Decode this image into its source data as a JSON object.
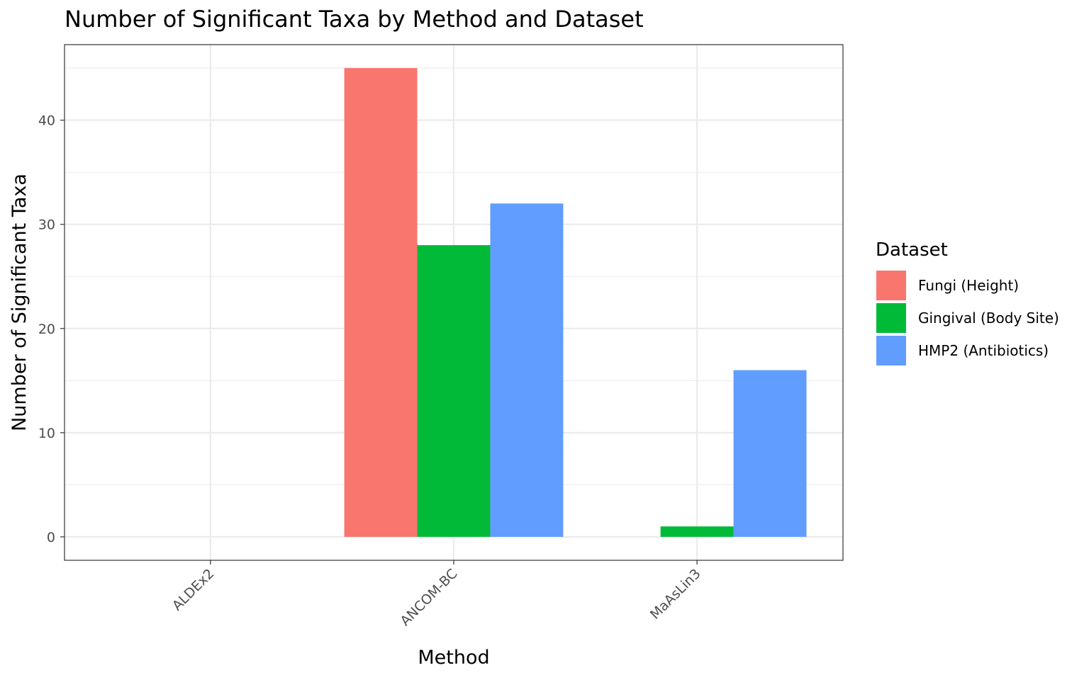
{
  "chart_data": {
    "type": "bar",
    "title": "Number of Significant Taxa by Method and Dataset",
    "xlabel": "Method",
    "ylabel": "Number of Significant Taxa",
    "categories": [
      "ALDEx2",
      "ANCOM-BC",
      "MaAsLin3"
    ],
    "series": [
      {
        "name": "Fungi (Height)",
        "color": "#F8766D",
        "values": [
          0,
          45,
          0
        ]
      },
      {
        "name": "Gingival (Body Site)",
        "color": "#00BA38",
        "values": [
          0,
          28,
          1
        ]
      },
      {
        "name": "HMP2 (Antibiotics)",
        "color": "#619CFF",
        "values": [
          0,
          32,
          16
        ]
      }
    ],
    "ylim": [
      -2.25,
      47.25
    ],
    "yticks": [
      0,
      10,
      20,
      30,
      40
    ],
    "ytick_labels": [
      "0",
      "10",
      "20",
      "30",
      "40"
    ],
    "grid": true,
    "legend": {
      "title": "Dataset",
      "position": "right"
    }
  }
}
